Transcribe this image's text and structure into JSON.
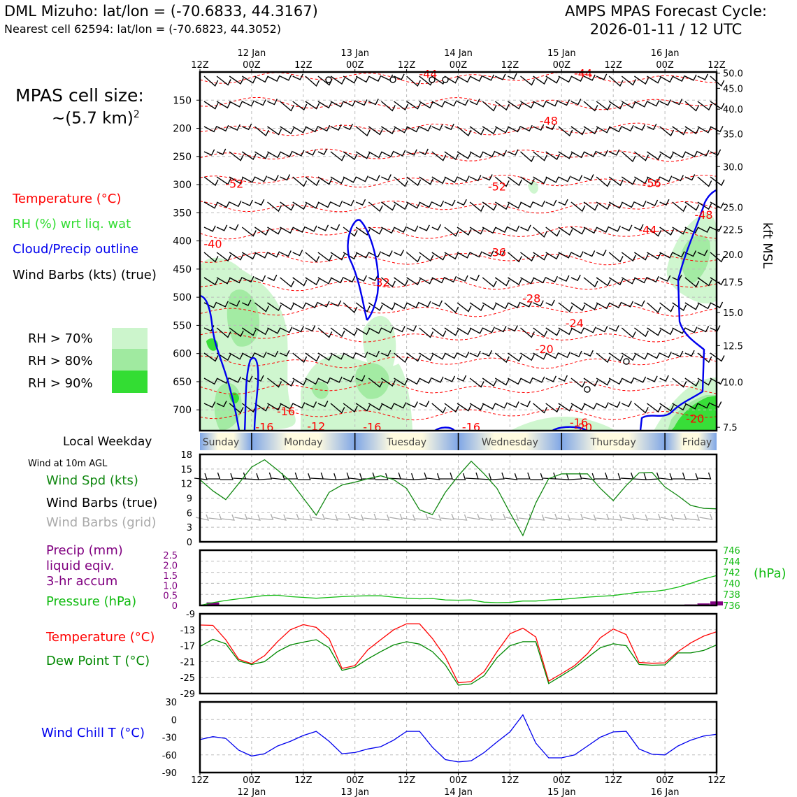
{
  "header": {
    "station_line": "DML Mizuho: lat/lon = (-70.6833, 44.3167)",
    "cell_line": "Nearest cell 62594: lat/lon = (-70.6823, 44.3052)",
    "cycle_title": "AMPS MPAS Forecast Cycle:",
    "cycle_value": "2026-01-11 / 12 UTC"
  },
  "info": {
    "cell_size_label": "MPAS cell size:",
    "cell_size_value": "~(5.7 km)",
    "cell_size_exp": "2"
  },
  "legend": {
    "temperature": "Temperature (°C)",
    "rh": "RH (%) wrt liq. wat",
    "cloud": "Cloud/Precip outline",
    "barbs": "Wind Barbs (kts) (true)",
    "rh70": "RH > 70%",
    "rh80": "RH > 80%",
    "rh90": "RH > 90%",
    "kft_label": "kft MSL",
    "local_weekday": "Local Weekday",
    "wind10m": "Wind at 10m AGL",
    "wind_spd": "Wind Spd (kts)",
    "barbs_true": "Wind Barbs (true)",
    "barbs_grid": "Wind Barbs (grid)",
    "precip": "Precip (mm)",
    "precip2": "liquid eqiv.",
    "precip3": "3-hr accum",
    "pressure": "Pressure (hPa)",
    "hpa_unit": "(hPa)",
    "temp2": "Temperature (°C)",
    "dewpoint": "Dew Point T (°C)",
    "windchill": "Wind Chill T (°C)"
  },
  "colors": {
    "temp": "#ff0000",
    "rh_text": "#33dd33",
    "cloud": "#0000ee",
    "wind_spd": "#118811",
    "precip": "#800080",
    "pressure": "#11bb11",
    "dewpoint": "#008800",
    "windchill": "#0000ee",
    "rh70": "#ccf5cc",
    "rh80": "#a0eaa0",
    "rh90": "#33dd33",
    "grid_barb": "#aaaaaa"
  },
  "chart_data": [
    {
      "type": "heatmap",
      "name": "time-height cross section",
      "x_range_hours": [
        0,
        120
      ],
      "top_ticks": [
        {
          "t": 0,
          "top": "",
          "bottom": "12Z"
        },
        {
          "t": 12,
          "top": "12 Jan",
          "bottom": "00Z"
        },
        {
          "t": 24,
          "top": "",
          "bottom": "12Z"
        },
        {
          "t": 36,
          "top": "13 Jan",
          "bottom": "00Z"
        },
        {
          "t": 48,
          "top": "",
          "bottom": "12Z"
        },
        {
          "t": 60,
          "top": "14 Jan",
          "bottom": "00Z"
        },
        {
          "t": 72,
          "top": "",
          "bottom": "12Z"
        },
        {
          "t": 84,
          "top": "15 Jan",
          "bottom": "00Z"
        },
        {
          "t": 96,
          "top": "",
          "bottom": "12Z"
        },
        {
          "t": 108,
          "top": "16 Jan",
          "bottom": "00Z"
        },
        {
          "t": 120,
          "top": "",
          "bottom": "12Z"
        }
      ],
      "ylabel": "Pressure (hPa)",
      "ylim": [
        737,
        100
      ],
      "y_ticks": [
        150,
        200,
        250,
        300,
        350,
        400,
        450,
        500,
        550,
        600,
        650,
        700
      ],
      "right_ticks": [
        {
          "label": "50.0",
          "p": 102
        },
        {
          "label": "45.0",
          "p": 129
        },
        {
          "label": "40.0",
          "p": 166
        },
        {
          "label": "35.0",
          "p": 210
        },
        {
          "label": "30.0",
          "p": 268
        },
        {
          "label": "25.0",
          "p": 340
        },
        {
          "label": "22.5",
          "p": 380
        },
        {
          "label": "20.0",
          "p": 424
        },
        {
          "label": "17.5",
          "p": 473
        },
        {
          "label": "15.0",
          "p": 527
        },
        {
          "label": "12.5",
          "p": 586
        },
        {
          "label": "10.0",
          "p": 651
        },
        {
          "label": "7.5",
          "p": 731
        }
      ],
      "temp_labels": [
        {
          "text": "-44",
          "t": 53,
          "p": 103
        },
        {
          "text": "-44",
          "t": 89,
          "p": 102
        },
        {
          "text": "-48",
          "t": 81,
          "p": 186
        },
        {
          "text": "-52",
          "t": 8,
          "p": 298
        },
        {
          "text": "-52",
          "t": 69,
          "p": 303
        },
        {
          "text": "-56",
          "t": 105,
          "p": 297
        },
        {
          "text": "-48",
          "t": 117,
          "p": 353
        },
        {
          "text": "-44",
          "t": 104,
          "p": 380
        },
        {
          "text": "-40",
          "t": 3,
          "p": 405
        },
        {
          "text": "-36",
          "t": 69,
          "p": 420
        },
        {
          "text": "-32",
          "t": 42,
          "p": 473
        },
        {
          "text": "-28",
          "t": 77,
          "p": 502
        },
        {
          "text": "-24",
          "t": 87,
          "p": 546
        },
        {
          "text": "-20",
          "t": 80,
          "p": 592
        },
        {
          "text": "-16",
          "t": 20,
          "p": 702
        },
        {
          "text": "-16",
          "t": 15,
          "p": 730
        },
        {
          "text": "-12",
          "t": 27,
          "p": 729
        },
        {
          "text": "-16",
          "t": 40,
          "p": 730
        },
        {
          "text": "-16",
          "t": 63,
          "p": 730
        },
        {
          "text": "-16",
          "t": 88,
          "p": 722
        },
        {
          "text": "-20",
          "t": 89,
          "p": 731
        },
        {
          "text": "-20",
          "t": 115,
          "p": 715
        }
      ]
    },
    {
      "type": "line",
      "name": "wind speed 10m",
      "x_hours": [
        0,
        3,
        6,
        9,
        12,
        15,
        18,
        21,
        24,
        27,
        30,
        33,
        36,
        39,
        42,
        45,
        48,
        51,
        54,
        57,
        60,
        63,
        66,
        69,
        72,
        75,
        78,
        81,
        84,
        87,
        90,
        93,
        96,
        99,
        102,
        105,
        108,
        111,
        114,
        117,
        120
      ],
      "wind_kts": [
        12.8,
        10.5,
        8.7,
        12.0,
        15.4,
        16.9,
        14.8,
        12.5,
        9.0,
        5.5,
        10.2,
        11.7,
        12.3,
        13.0,
        13.6,
        12.8,
        11.0,
        6.6,
        5.6,
        10.2,
        13.6,
        16.6,
        14.0,
        11.0,
        6.0,
        1.3,
        8.0,
        13.0,
        14.0,
        14.0,
        14.0,
        11.0,
        8.5,
        11.6,
        14.2,
        14.3,
        11.3,
        9.5,
        7.5,
        6.9,
        6.8
      ],
      "ylim": [
        0,
        18
      ],
      "y_ticks": [
        0,
        3,
        6,
        9,
        12,
        15,
        18
      ]
    },
    {
      "type": "line",
      "name": "pressure and precip",
      "pressure_hpa": [
        736.0,
        736.5,
        736.9,
        737.2,
        737.5,
        737.8,
        737.85,
        737.6,
        737.45,
        737.3,
        737.45,
        737.6,
        737.7,
        737.75,
        737.75,
        737.5,
        737.3,
        737.2,
        737.25,
        737.0,
        736.95,
        737.0,
        736.6,
        736.5,
        736.55,
        736.8,
        736.8,
        737.0,
        737.1,
        737.3,
        737.5,
        737.65,
        737.8,
        738.1,
        738.4,
        738.5,
        738.8,
        739.3,
        740.0,
        740.8,
        741.4
      ],
      "pressure_ticks": [
        736,
        738,
        740,
        742,
        744,
        746
      ],
      "pressure_lim": [
        736,
        746
      ],
      "precip_mm": [
        0,
        0.15,
        0,
        0,
        0,
        0,
        0,
        0,
        0,
        0,
        0,
        0,
        0,
        0,
        0,
        0,
        0,
        0,
        0,
        0,
        0,
        0,
        0,
        0,
        0,
        0,
        0,
        0,
        0,
        0,
        0,
        0,
        0,
        0,
        0,
        0,
        0,
        0,
        0.05,
        0.1,
        0.2
      ],
      "precip_ticks": [
        "0",
        "0.5",
        "1.0",
        "1.5",
        "2.0",
        "2.5"
      ],
      "precip_lim": [
        0,
        2.75
      ]
    },
    {
      "type": "line",
      "name": "temperature and dew point",
      "temp_c": [
        -11.8,
        -11.9,
        -15.5,
        -20.4,
        -21.5,
        -19.5,
        -16.0,
        -13.0,
        -11.7,
        -12.4,
        -15.3,
        -22.7,
        -22.0,
        -18.0,
        -15.5,
        -13.0,
        -11.5,
        -11.5,
        -15.2,
        -19.8,
        -26.3,
        -26.0,
        -23.5,
        -18.5,
        -14.0,
        -12.6,
        -14.8,
        -25.9,
        -24.0,
        -22.0,
        -19.0,
        -15.0,
        -12.8,
        -14.2,
        -21.2,
        -21.4,
        -21.3,
        -18.5,
        -16.3,
        -14.6,
        -13.5
      ],
      "dewpoint_c": [
        -17.2,
        -15.4,
        -16.5,
        -20.8,
        -21.7,
        -21.0,
        -18.5,
        -16.8,
        -16.1,
        -15.5,
        -17.5,
        -23.2,
        -22.4,
        -20.3,
        -18.5,
        -16.8,
        -16.0,
        -16.6,
        -18.5,
        -21.8,
        -26.9,
        -26.6,
        -24.5,
        -20.0,
        -17.0,
        -16.0,
        -16.0,
        -26.5,
        -24.5,
        -22.5,
        -20.0,
        -17.5,
        -16.5,
        -17.0,
        -21.7,
        -21.9,
        -21.8,
        -18.8,
        -18.8,
        -18.2,
        -16.8
      ],
      "ylim": [
        -29,
        -9
      ],
      "y_ticks": [
        -29,
        -25,
        -21,
        -17,
        -13,
        -9
      ]
    },
    {
      "type": "line",
      "name": "wind chill",
      "windchill_c": [
        -34,
        -29,
        -32,
        -52,
        -62,
        -58,
        -45,
        -37,
        -27,
        -20,
        -37,
        -58,
        -56,
        -50,
        -46,
        -35,
        -20,
        -20,
        -47,
        -68,
        -72,
        -70,
        -56,
        -38,
        -21,
        8,
        -40,
        -65,
        -65,
        -60,
        -45,
        -30,
        -21,
        -20,
        -50,
        -59,
        -60,
        -45,
        -35,
        -28,
        -25
      ],
      "ylim": [
        -90,
        30
      ],
      "y_ticks": [
        -90,
        -60,
        -30,
        0,
        30
      ]
    }
  ],
  "weekdays": [
    "Sunday",
    "Monday",
    "Tuesday",
    "Wednesday",
    "Thursday",
    "Friday"
  ]
}
